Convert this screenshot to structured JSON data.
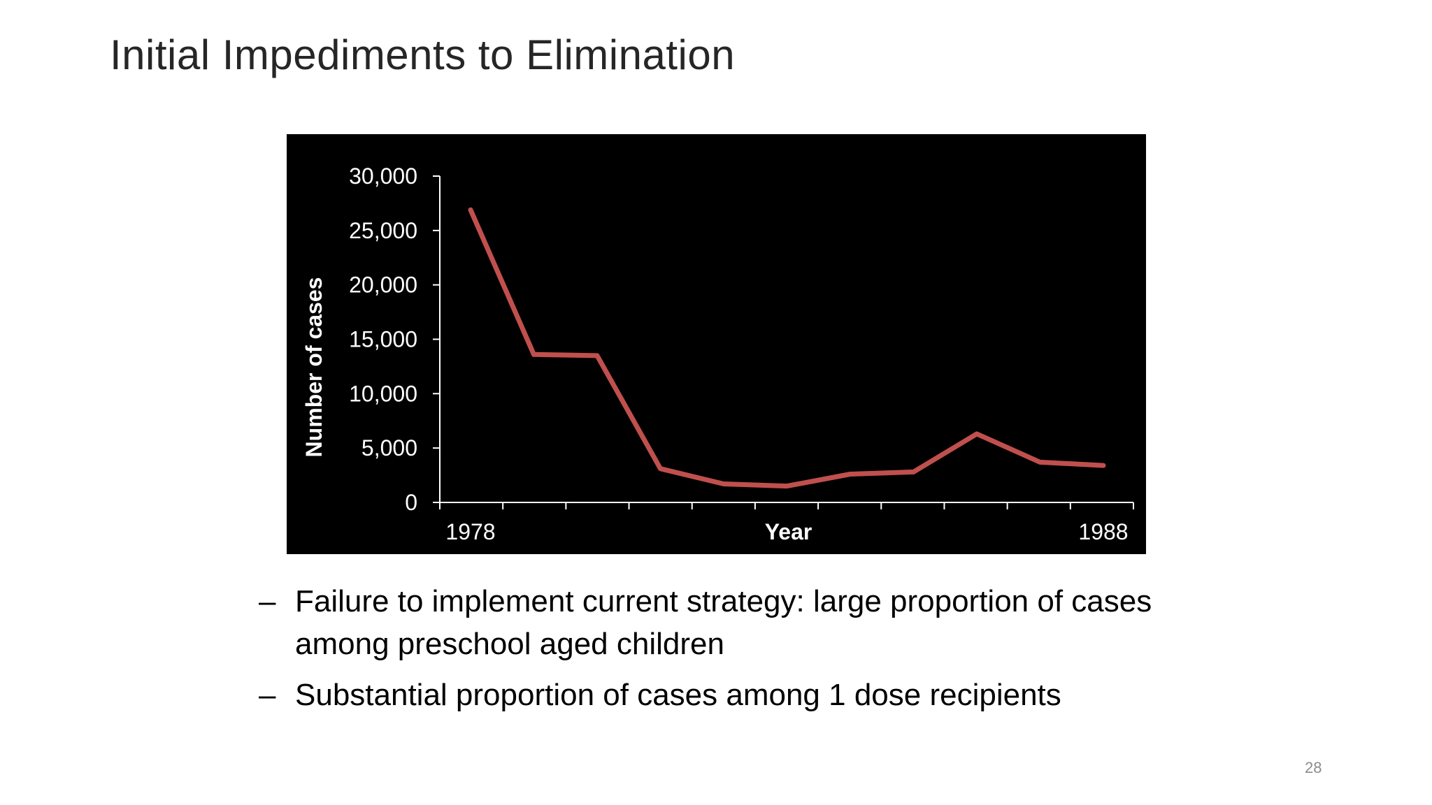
{
  "slide": {
    "title": "Initial Impediments to Elimination",
    "page_number": "28"
  },
  "bullets": [
    {
      "marker": "–",
      "text": "Failure to implement current strategy: large proportion of cases among preschool aged children"
    },
    {
      "marker": "–",
      "text": "Substantial proportion of cases among 1 dose recipients"
    }
  ],
  "chart_data": {
    "type": "line",
    "title": "",
    "xlabel": "Year",
    "ylabel": "Number of cases",
    "x": [
      1978,
      1979,
      1980,
      1981,
      1982,
      1983,
      1984,
      1985,
      1986,
      1987,
      1988
    ],
    "x_tick_labels": [
      {
        "x": 1978,
        "label": "1978"
      },
      {
        "x": 1988,
        "label": "1988"
      }
    ],
    "series": [
      {
        "values": [
          26900,
          13600,
          13500,
          3100,
          1700,
          1500,
          2600,
          2800,
          6300,
          3700,
          3400
        ]
      }
    ],
    "ylim": [
      0,
      30000
    ],
    "y_ticks": [
      {
        "value": 0,
        "label": "0"
      },
      {
        "value": 5000,
        "label": "5,000"
      },
      {
        "value": 10000,
        "label": "10,000"
      },
      {
        "value": 15000,
        "label": "15,000"
      },
      {
        "value": 20000,
        "label": "20,000"
      },
      {
        "value": 25000,
        "label": "25,000"
      },
      {
        "value": 30000,
        "label": "30,000"
      }
    ],
    "grid": false,
    "legend": "none",
    "colors": {
      "background": "#000000",
      "line": "#c0504d",
      "axis": "#ffffff",
      "text": "#ffffff"
    }
  }
}
